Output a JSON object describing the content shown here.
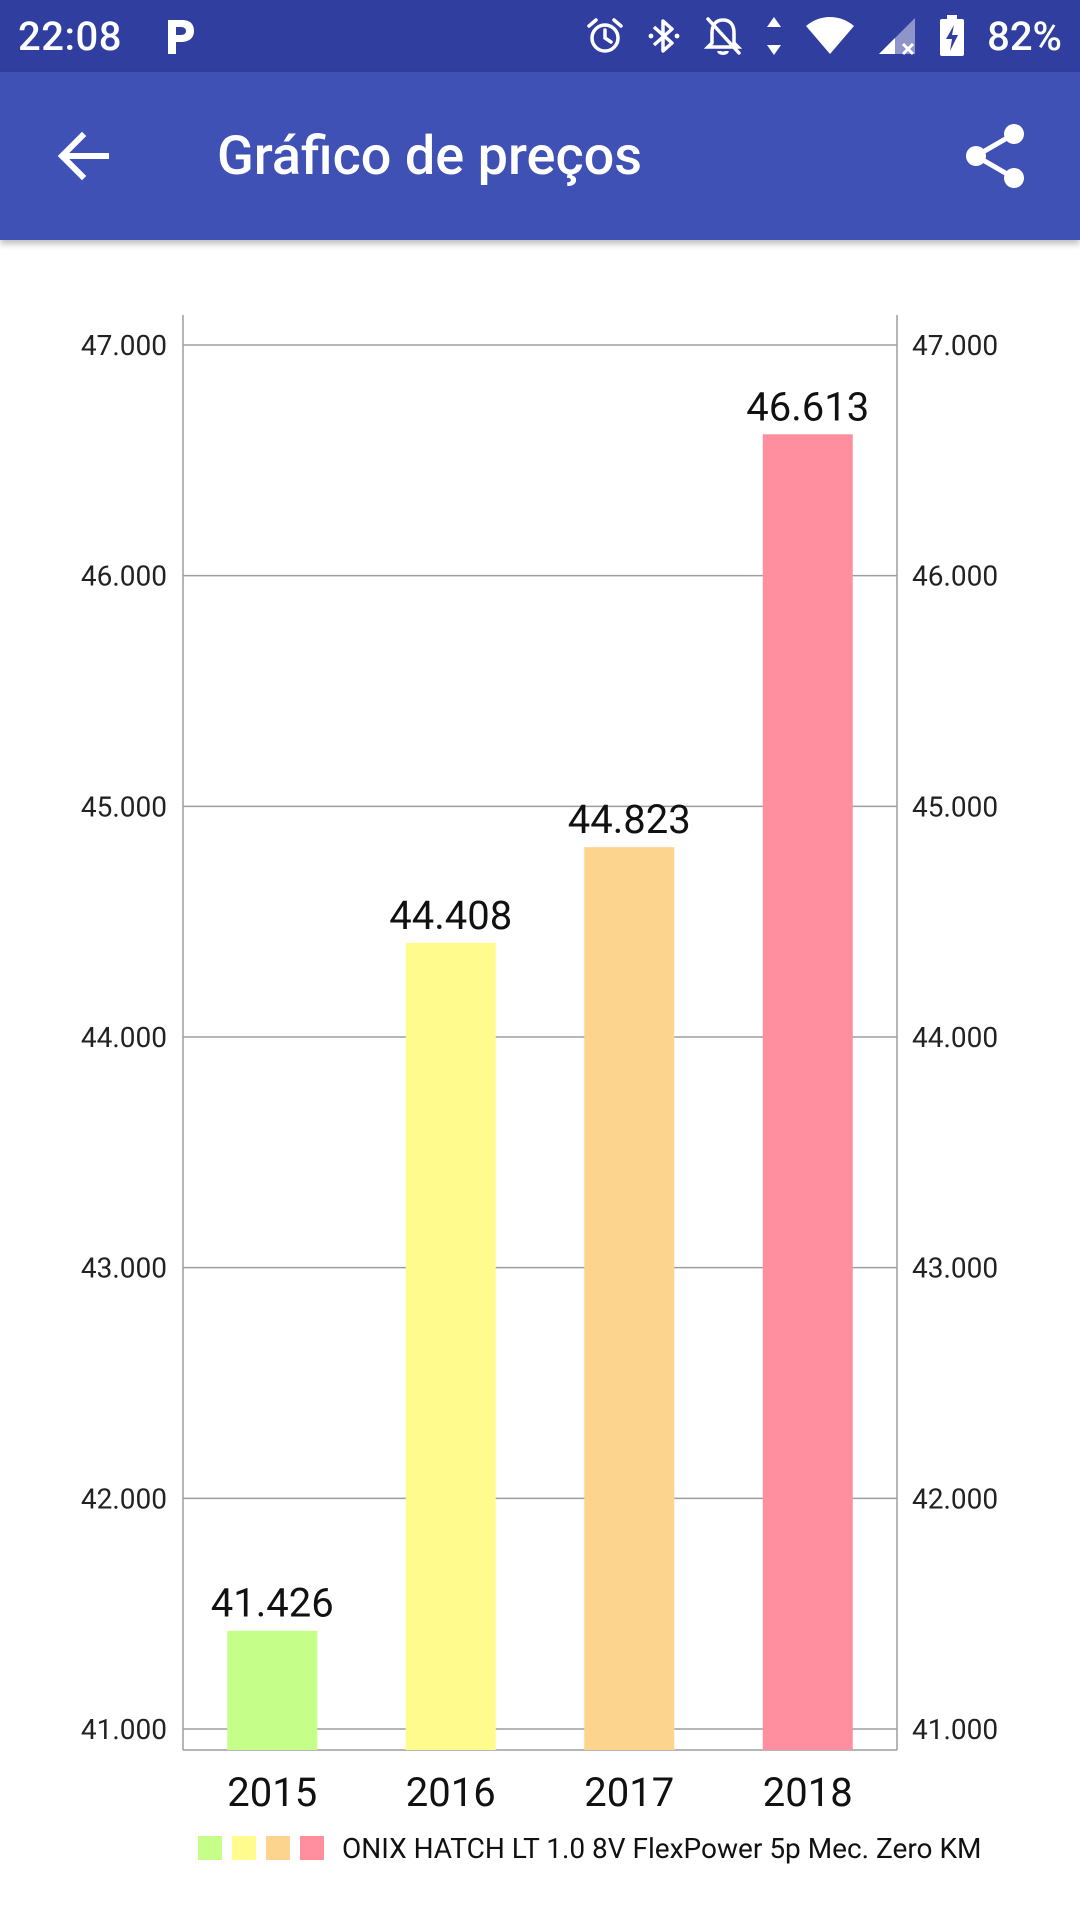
{
  "status_bar": {
    "time": "22:08",
    "battery": "82%",
    "icons": [
      "parking-app-icon",
      "alarm-icon",
      "bluetooth-icon",
      "bell-off-icon",
      "wifi-icon",
      "signal-icon",
      "battery-charging-icon"
    ]
  },
  "app_bar": {
    "title": "Gráfico de preços",
    "back_icon": "arrow-back-icon",
    "share_icon": "share-icon"
  },
  "chart_data": {
    "type": "bar",
    "categories": [
      "2015",
      "2016",
      "2017",
      "2018"
    ],
    "values": [
      41426,
      44408,
      44823,
      46613
    ],
    "value_labels": [
      "41.426",
      "44.408",
      "44.823",
      "46.613"
    ],
    "colors": [
      "#c5ff8a",
      "#fffb8c",
      "#fdd48e",
      "#ff8f9f"
    ],
    "ylim": [
      41000,
      47000
    ],
    "yticks": [
      41000,
      42000,
      43000,
      44000,
      45000,
      46000,
      47000
    ],
    "ytick_labels": [
      "41.000",
      "42.000",
      "43.000",
      "44.000",
      "45.000",
      "46.000",
      "47.000"
    ],
    "axis_right_duplicate": true,
    "grid": true,
    "legend": {
      "position": "bottom",
      "label": "ONIX HATCH LT 1.0 8V FlexPower 5p Mec. Zero KM"
    }
  }
}
